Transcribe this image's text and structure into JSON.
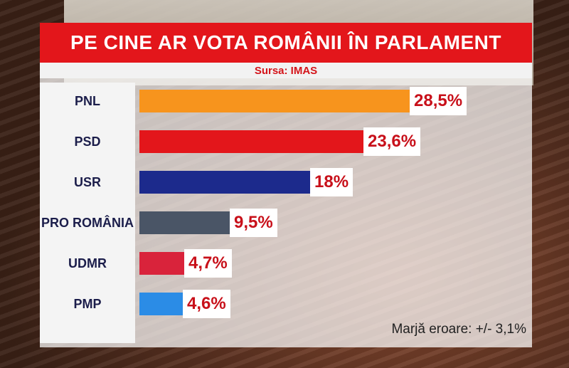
{
  "header": {
    "title": "PE CINE AR VOTA ROMÂNII ÎN PARLAMENT",
    "source": "Sursa: IMAS"
  },
  "footer": {
    "margin_of_error": "Marjă eroare: +/- 3,1%"
  },
  "colors": {
    "title_bg": "#e3161b",
    "value_text": "#c8101a"
  },
  "chart_data": {
    "type": "bar",
    "orientation": "horizontal",
    "title": "PE CINE AR VOTA ROMÂNII ÎN PARLAMENT",
    "subtitle": "Sursa: IMAS",
    "categories": [
      "PNL",
      "PSD",
      "USR",
      "PRO ROMÂNIA",
      "UDMR",
      "PMP"
    ],
    "values": [
      28.5,
      23.6,
      18,
      9.5,
      4.7,
      4.6
    ],
    "value_labels": [
      "28,5%",
      "23,6%",
      "18%",
      "9,5%",
      "4,7%",
      "4,6%"
    ],
    "bar_colors": [
      "#f7941d",
      "#e3161b",
      "#1c2a8c",
      "#4a5566",
      "#d9233b",
      "#2b8ce6"
    ],
    "xlim": [
      0,
      28.5
    ],
    "annotation": "Marjă eroare: +/- 3,1%",
    "grid": false,
    "legend": "none"
  }
}
